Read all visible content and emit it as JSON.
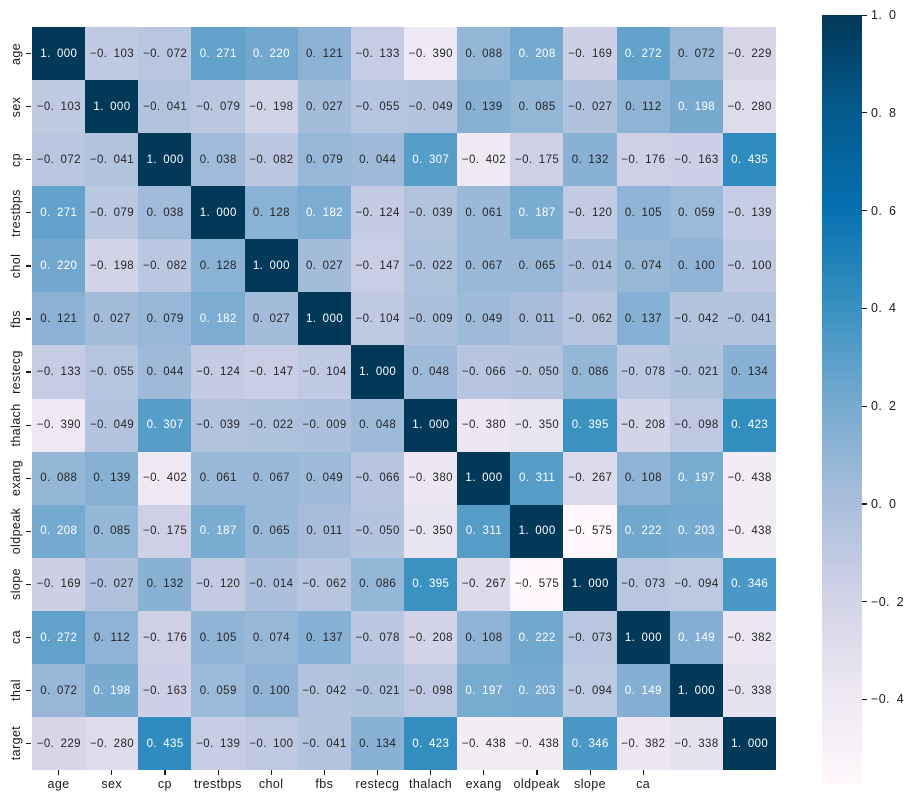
{
  "chart_data": {
    "type": "heatmap",
    "title": "",
    "xlabel": "",
    "ylabel": "",
    "categories": [
      "age",
      "sex",
      "cp",
      "trestbps",
      "chol",
      "fbs",
      "restecg",
      "thalach",
      "exang",
      "oldpeak",
      "slope",
      "ca",
      "thal",
      "target"
    ],
    "y_tick_labels": [
      "age",
      "sex",
      "cp",
      "trestbps",
      "chol",
      "fbs",
      "restecg",
      "thalach",
      "exang",
      "oldpeak",
      "slope",
      "ca",
      "thal",
      "target"
    ],
    "x_tick_labels_visible": [
      "age",
      "sex",
      "cp",
      "trestbps",
      "chol",
      "fbs",
      "restecg",
      "thalach",
      "exang",
      "oldpeak",
      "slope",
      "ca"
    ],
    "matrix": [
      [
        1.0,
        -0.103,
        -0.072,
        0.271,
        0.22,
        0.121,
        -0.133,
        -0.39,
        0.088,
        0.208,
        -0.169,
        0.272,
        0.072,
        -0.229
      ],
      [
        -0.103,
        1.0,
        -0.041,
        -0.079,
        -0.198,
        0.027,
        -0.055,
        -0.049,
        0.139,
        0.085,
        -0.027,
        0.112,
        0.198,
        -0.28
      ],
      [
        -0.072,
        -0.041,
        1.0,
        0.038,
        -0.082,
        0.079,
        0.044,
        0.307,
        -0.402,
        -0.175,
        0.132,
        -0.176,
        -0.163,
        0.435
      ],
      [
        0.271,
        -0.079,
        0.038,
        1.0,
        0.128,
        0.182,
        -0.124,
        -0.039,
        0.061,
        0.187,
        -0.12,
        0.105,
        0.059,
        -0.139
      ],
      [
        0.22,
        -0.198,
        -0.082,
        0.128,
        1.0,
        0.027,
        -0.147,
        -0.022,
        0.067,
        0.065,
        -0.014,
        0.074,
        0.1,
        -0.1
      ],
      [
        0.121,
        0.027,
        0.079,
        0.182,
        0.027,
        1.0,
        -0.104,
        -0.009,
        0.049,
        0.011,
        -0.062,
        0.137,
        -0.042,
        -0.041
      ],
      [
        -0.133,
        -0.055,
        0.044,
        -0.124,
        -0.147,
        -0.104,
        1.0,
        0.048,
        -0.066,
        -0.05,
        0.086,
        -0.078,
        -0.021,
        0.134
      ],
      [
        -0.39,
        -0.049,
        0.307,
        -0.039,
        -0.022,
        -0.009,
        0.048,
        1.0,
        -0.38,
        -0.35,
        0.395,
        -0.208,
        -0.098,
        0.423
      ],
      [
        0.088,
        0.139,
        -0.402,
        0.061,
        0.067,
        0.049,
        -0.066,
        -0.38,
        1.0,
        0.311,
        -0.267,
        0.108,
        0.197,
        -0.438
      ],
      [
        0.208,
        0.085,
        -0.175,
        0.187,
        0.065,
        0.011,
        -0.05,
        -0.35,
        0.311,
        1.0,
        -0.575,
        0.222,
        0.203,
        -0.438
      ],
      [
        -0.169,
        -0.027,
        0.132,
        -0.12,
        -0.014,
        -0.062,
        0.086,
        0.395,
        -0.267,
        -0.575,
        1.0,
        -0.073,
        -0.094,
        0.346
      ],
      [
        0.272,
        0.112,
        -0.176,
        0.105,
        0.074,
        0.137,
        -0.078,
        -0.208,
        0.108,
        0.222,
        -0.073,
        1.0,
        0.149,
        -0.382
      ],
      [
        0.072,
        0.198,
        -0.163,
        0.059,
        0.1,
        -0.042,
        -0.021,
        -0.098,
        0.197,
        0.203,
        -0.094,
        0.149,
        1.0,
        -0.338
      ],
      [
        -0.229,
        -0.28,
        0.435,
        -0.139,
        -0.1,
        -0.041,
        0.134,
        0.423,
        -0.438,
        -0.438,
        0.346,
        -0.382,
        -0.338,
        1.0
      ]
    ],
    "vmin": -0.575,
    "vmax": 1.0,
    "colormap": "PuBu",
    "colormap_stops_light_to_dark": [
      "#fff7fb",
      "#ece7f2",
      "#d0d1e6",
      "#a6bddb",
      "#74a9cf",
      "#3690c0",
      "#0570b0",
      "#045a8d",
      "#023858"
    ],
    "colorbar_ticks": [
      1.0,
      0.8,
      0.6,
      0.4,
      0.2,
      0.0,
      -0.2,
      -0.4
    ],
    "value_decimals": 3,
    "colorbar_tick_decimals": 1,
    "number_style": "space after decimal point, unicode minus",
    "annotation_text_color_dark": "#262626",
    "annotation_text_color_light": "#ffffff",
    "axis_text_color": "#1a1a1a",
    "background_color": "#ffffff",
    "grid": false,
    "legend_position": "right-colorbar"
  }
}
